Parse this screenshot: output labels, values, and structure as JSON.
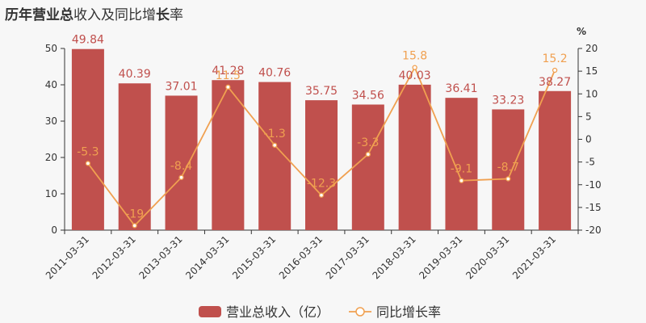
{
  "title": {
    "prefix": "历年",
    "bold_part": "营业总",
    "middle": "收入及同比增",
    "bold_part2": "长",
    "suffix": "率"
  },
  "chart_data": {
    "type": "bar",
    "categories": [
      "2011-03-31",
      "2012-03-31",
      "2013-03-31",
      "2014-03-31",
      "2015-03-31",
      "2016-03-31",
      "2017-03-31",
      "2018-03-31",
      "2019-03-31",
      "2020-03-31",
      "2021-03-31"
    ],
    "series": [
      {
        "name": "营业总收入（亿）",
        "type": "bar",
        "axis": "left",
        "values": [
          49.84,
          40.39,
          37.01,
          41.28,
          40.76,
          35.75,
          34.56,
          40.03,
          36.41,
          33.23,
          38.27
        ],
        "labels": [
          "49.84",
          "40.39",
          "37.01",
          "41.28",
          "40.76",
          "35.75",
          "34.56",
          "40.03",
          "36.41",
          "33.23",
          "38.27"
        ]
      },
      {
        "name": "同比增长率",
        "type": "line",
        "axis": "right",
        "values": [
          -5.3,
          -19,
          -8.4,
          11.5,
          -1.3,
          -12.3,
          -3.3,
          15.8,
          -9.1,
          -8.7,
          15.2
        ],
        "labels": [
          "-5.3",
          "-19",
          "-8.4",
          "11.5",
          "-1.3",
          "-12.3",
          "-3.3",
          "15.8",
          "-9.1",
          "-8.7",
          "15.2"
        ]
      }
    ],
    "y_left": {
      "min": 0,
      "max": 50,
      "ticks": [
        "0",
        "10",
        "20",
        "30",
        "40",
        "50"
      ]
    },
    "y_right": {
      "min": -20,
      "max": 20,
      "unit": "%",
      "ticks": [
        "-20",
        "-15",
        "-10",
        "-5",
        "0",
        "5",
        "10",
        "15",
        "20"
      ]
    },
    "legend_position": "bottom-center",
    "colors": {
      "bar": "#c0504d",
      "line": "#f0a050"
    }
  }
}
